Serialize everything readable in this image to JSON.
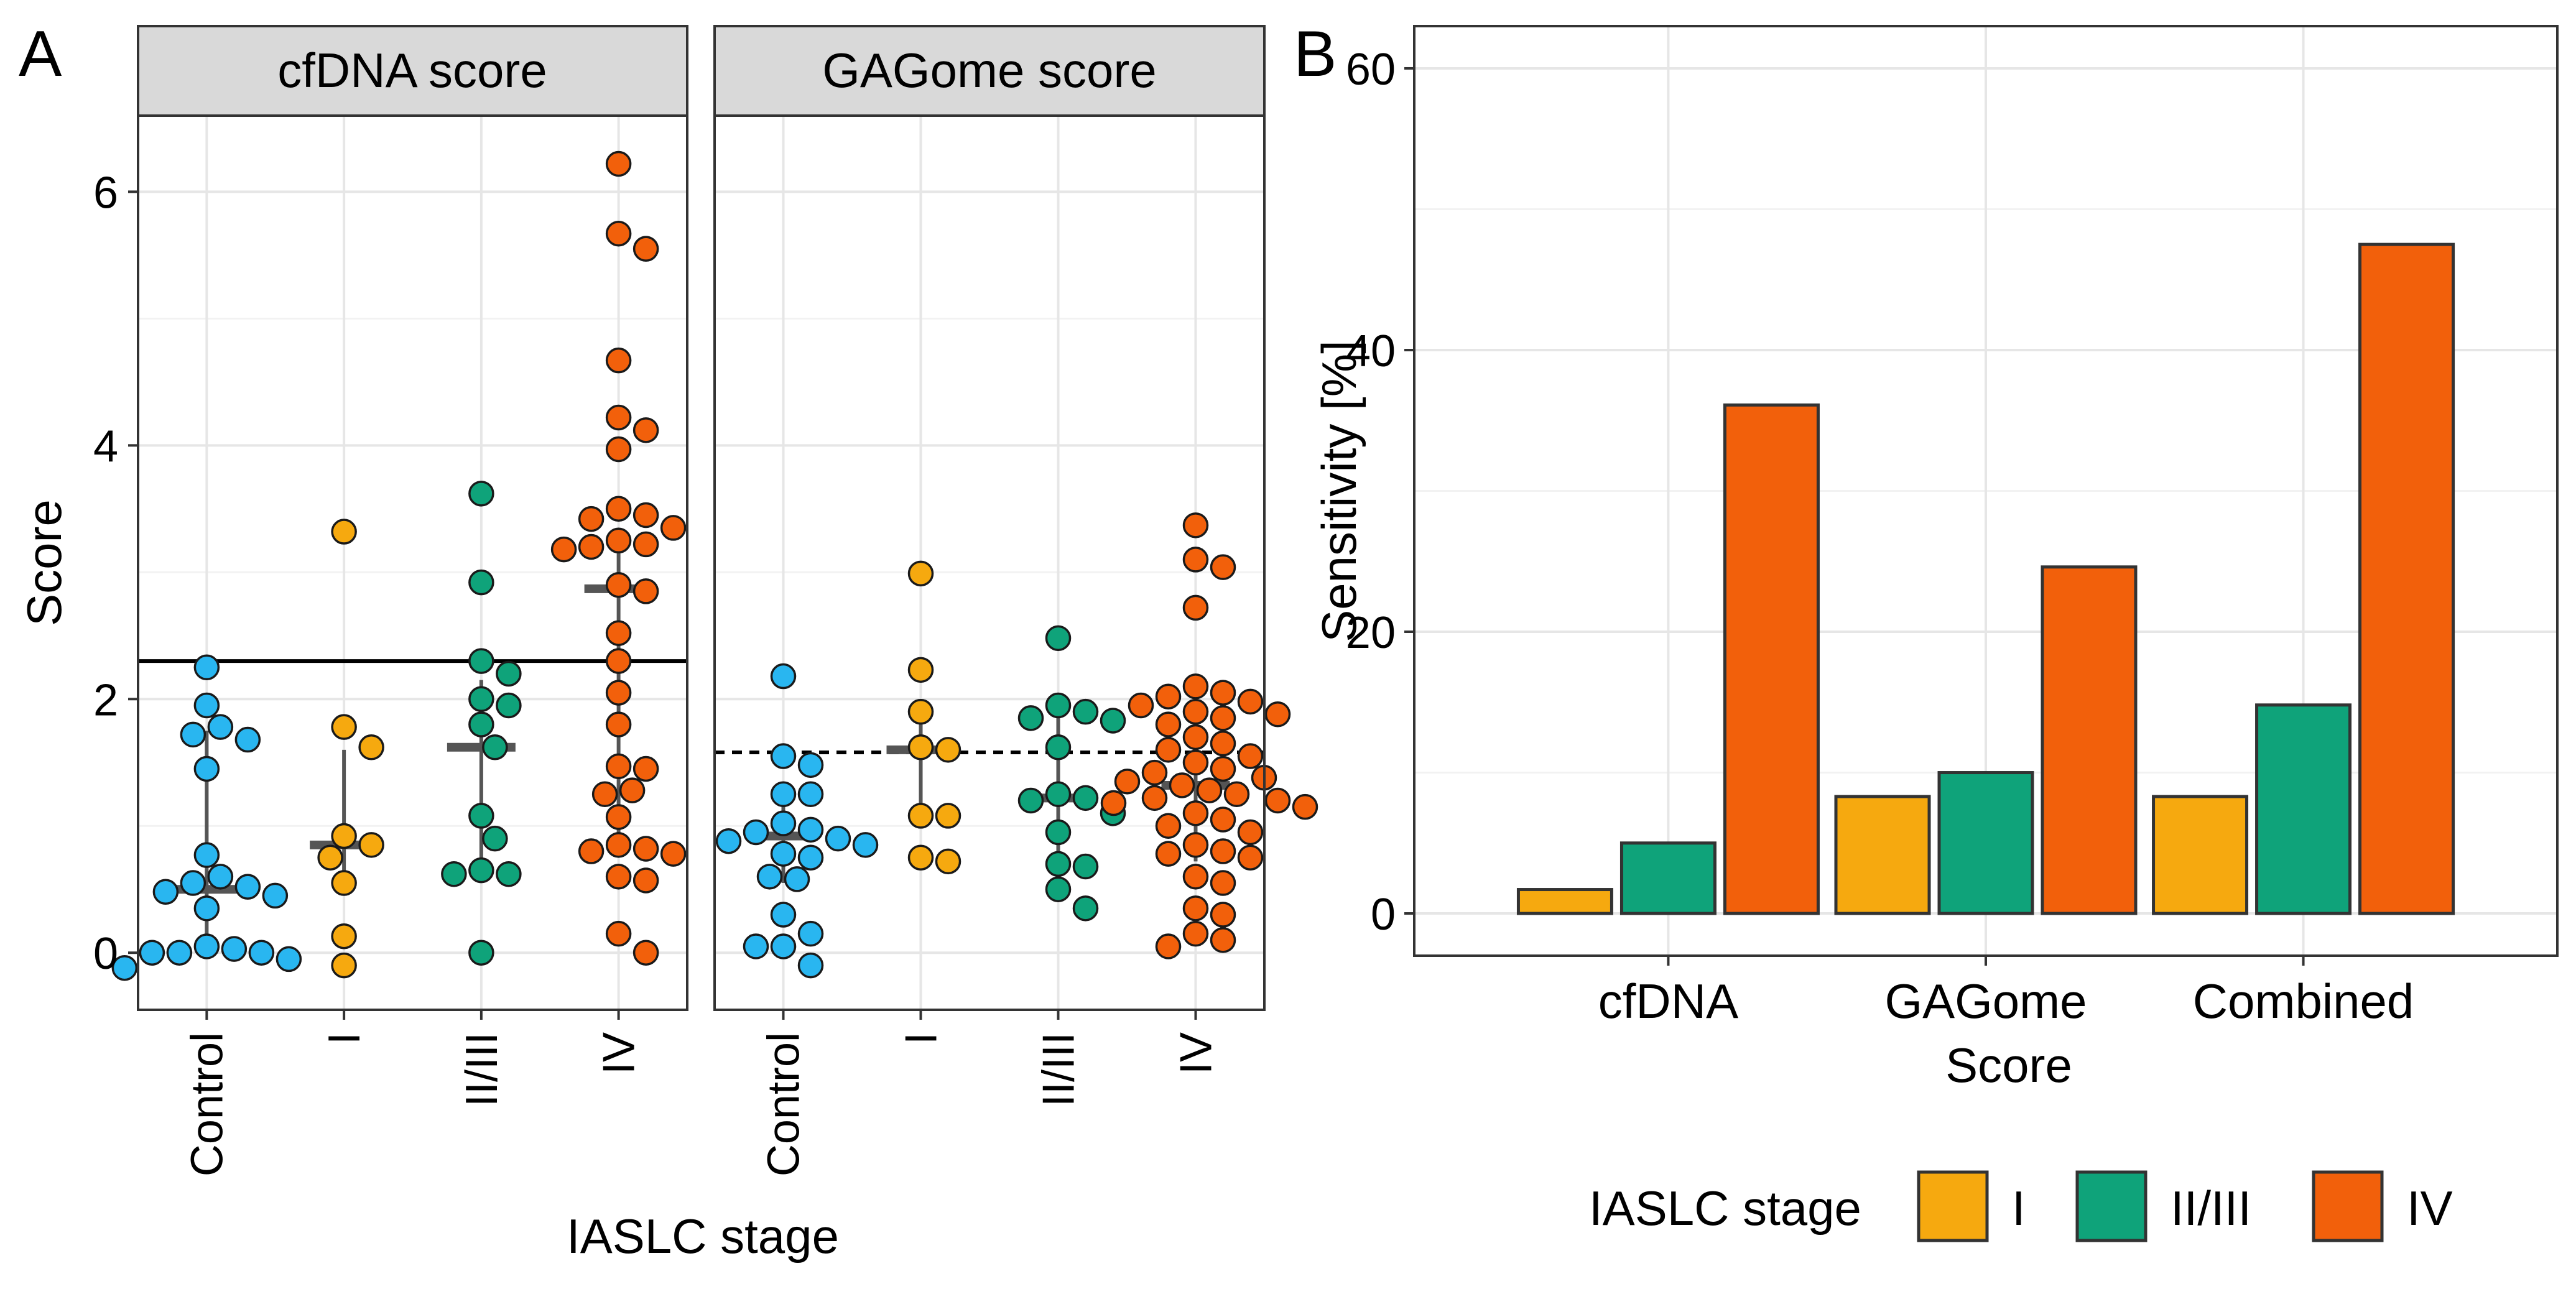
{
  "chart_data": [
    {
      "panel_letter": "A",
      "type": "scatter",
      "ylabel": "Score",
      "xlabel": "IASLC stage",
      "ylim": [
        -0.45,
        6.6
      ],
      "yticks": [
        0,
        2,
        4,
        6
      ],
      "categories": [
        "Control",
        "I",
        "II/III",
        "IV"
      ],
      "colors": {
        "Control": "#29b6f0",
        "I": "#f6a90f",
        "II/III": "#0fa37a",
        "IV": "#f2600b"
      },
      "facets": [
        {
          "title": "cfDNA score",
          "threshold": {
            "value": 2.3,
            "style": "solid"
          },
          "groups": [
            {
              "category": "Control",
              "median": 0.5,
              "q1": 0.05,
              "q3": 1.75,
              "values": [
                2.25,
                1.95,
                1.78,
                1.72,
                1.68,
                1.45,
                0.77,
                0.6,
                0.55,
                0.52,
                0.48,
                0.45,
                0.35,
                0.05,
                0.03,
                0.0,
                0.0,
                0.0,
                -0.05,
                -0.12
              ]
            },
            {
              "category": "I",
              "median": 0.85,
              "q1": 0.55,
              "q3": 1.6,
              "values": [
                3.32,
                1.78,
                1.62,
                0.92,
                0.85,
                0.75,
                0.55,
                0.13,
                -0.1
              ]
            },
            {
              "category": "II/III",
              "median": 1.62,
              "q1": 0.62,
              "q3": 2.15,
              "values": [
                3.62,
                2.92,
                2.3,
                2.2,
                2.0,
                1.95,
                1.8,
                1.62,
                1.08,
                0.9,
                0.65,
                0.62,
                0.62,
                0.0
              ]
            },
            {
              "category": "IV",
              "median": 2.87,
              "q1": 0.82,
              "q3": 3.2,
              "values": [
                6.22,
                5.67,
                5.55,
                4.67,
                4.22,
                4.12,
                3.97,
                3.5,
                3.45,
                3.42,
                3.35,
                3.25,
                3.22,
                3.2,
                3.18,
                2.9,
                2.85,
                2.52,
                2.3,
                2.05,
                1.8,
                1.47,
                1.45,
                1.28,
                1.25,
                1.07,
                0.85,
                0.82,
                0.8,
                0.78,
                0.6,
                0.57,
                0.15,
                0.0
              ]
            }
          ]
        },
        {
          "title": "GAGome score",
          "threshold": {
            "value": 1.58,
            "style": "dashed"
          },
          "groups": [
            {
              "category": "Control",
              "median": 0.92,
              "q1": 0.55,
              "q3": 1.3,
              "values": [
                2.18,
                1.55,
                1.48,
                1.25,
                1.25,
                1.02,
                0.97,
                0.95,
                0.9,
                0.88,
                0.85,
                0.78,
                0.75,
                0.6,
                0.58,
                0.3,
                0.15,
                0.05,
                0.05,
                -0.1
              ]
            },
            {
              "category": "I",
              "median": 1.6,
              "q1": 1.08,
              "q3": 1.9,
              "values": [
                2.99,
                2.23,
                1.9,
                1.62,
                1.6,
                1.08,
                1.08,
                0.75,
                0.72
              ]
            },
            {
              "category": "II/III",
              "median": 1.22,
              "q1": 0.7,
              "q3": 1.85,
              "values": [
                2.48,
                1.95,
                1.9,
                1.85,
                1.83,
                1.62,
                1.25,
                1.22,
                1.2,
                1.1,
                0.95,
                0.7,
                0.68,
                0.5,
                0.35
              ]
            },
            {
              "category": "IV",
              "median": 1.32,
              "q1": 0.72,
              "q3": 1.85,
              "values": [
                3.37,
                3.1,
                3.04,
                2.72,
                2.1,
                2.05,
                2.02,
                1.98,
                1.95,
                1.9,
                1.88,
                1.85,
                1.8,
                1.7,
                1.65,
                1.6,
                1.55,
                1.5,
                1.45,
                1.42,
                1.38,
                1.35,
                1.32,
                1.28,
                1.25,
                1.22,
                1.2,
                1.18,
                1.15,
                1.1,
                1.05,
                1.0,
                0.95,
                0.85,
                0.8,
                0.78,
                0.75,
                0.6,
                0.55,
                0.35,
                0.3,
                0.15,
                0.1,
                0.05
              ]
            }
          ]
        }
      ]
    },
    {
      "panel_letter": "B",
      "type": "bar",
      "ylabel": "Sensitivity [%]",
      "xlabel": "Score",
      "ylim": [
        -3,
        63
      ],
      "yticks": [
        0,
        20,
        40,
        60
      ],
      "categories": [
        "cfDNA",
        "GAGome",
        "Combined"
      ],
      "series": [
        {
          "name": "I",
          "color": "#f6a90f",
          "values": [
            1.7,
            8.3,
            8.3
          ]
        },
        {
          "name": "II/III",
          "color": "#0fa37a",
          "values": [
            5.0,
            10.0,
            14.8
          ]
        },
        {
          "name": "IV",
          "color": "#f2600b",
          "values": [
            36.1,
            24.6,
            47.5
          ]
        }
      ],
      "legend": {
        "title": "IASLC stage",
        "placement": "bottom"
      }
    }
  ]
}
